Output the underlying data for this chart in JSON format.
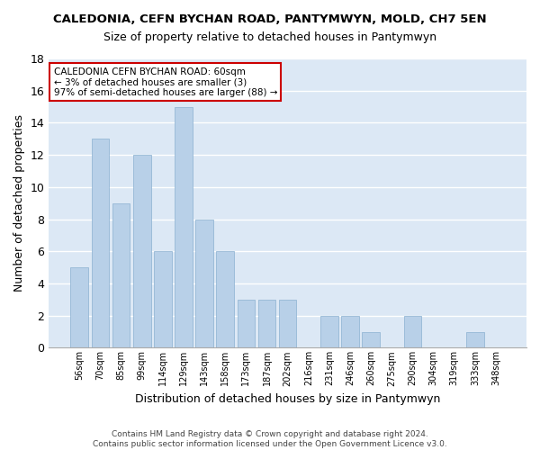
{
  "title": "CALEDONIA, CEFN BYCHAN ROAD, PANTYMWYN, MOLD, CH7 5EN",
  "subtitle": "Size of property relative to detached houses in Pantymwyn",
  "xlabel": "Distribution of detached houses by size in Pantymwyn",
  "ylabel": "Number of detached properties",
  "categories": [
    "56sqm",
    "70sqm",
    "85sqm",
    "99sqm",
    "114sqm",
    "129sqm",
    "143sqm",
    "158sqm",
    "173sqm",
    "187sqm",
    "202sqm",
    "216sqm",
    "231sqm",
    "246sqm",
    "260sqm",
    "275sqm",
    "290sqm",
    "304sqm",
    "319sqm",
    "333sqm",
    "348sqm"
  ],
  "values": [
    5,
    13,
    9,
    12,
    6,
    15,
    8,
    6,
    3,
    3,
    3,
    0,
    2,
    2,
    1,
    0,
    2,
    0,
    0,
    1,
    0
  ],
  "bar_color": "#b8d0e8",
  "bar_edge_color": "#8ab0d0",
  "annotation_text": "CALEDONIA CEFN BYCHAN ROAD: 60sqm\n← 3% of detached houses are smaller (3)\n97% of semi-detached houses are larger (88) →",
  "annotation_box_color": "#ffffff",
  "annotation_border_color": "#cc0000",
  "footer": "Contains HM Land Registry data © Crown copyright and database right 2024.\nContains public sector information licensed under the Open Government Licence v3.0.",
  "ylim": [
    0,
    18
  ],
  "yticks": [
    0,
    2,
    4,
    6,
    8,
    10,
    12,
    14,
    16,
    18
  ],
  "fig_bg_color": "#ffffff",
  "plot_bg_color": "#dce8f5"
}
